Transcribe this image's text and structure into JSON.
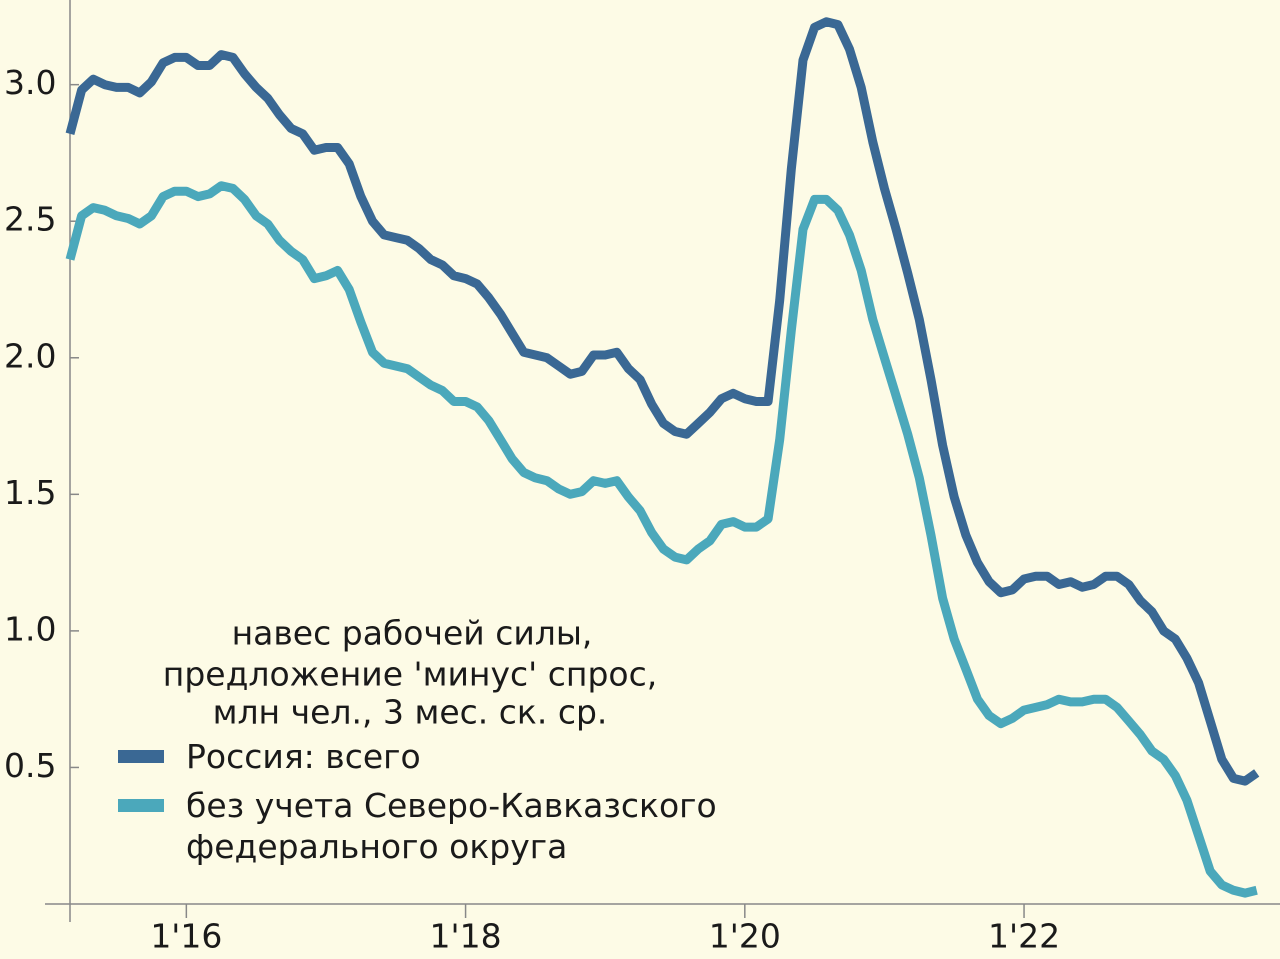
{
  "chart_data": {
    "type": "line",
    "title": [
      "навес рабочей силы,",
      "предложение 'минус' спрос,",
      "млн чел., 3 мес. ск. ср."
    ],
    "x": [
      "2015-03",
      "2015-04",
      "2015-05",
      "2015-06",
      "2015-07",
      "2015-08",
      "2015-09",
      "2015-10",
      "2015-11",
      "2015-12",
      "2016-01",
      "2016-02",
      "2016-03",
      "2016-04",
      "2016-05",
      "2016-06",
      "2016-07",
      "2016-08",
      "2016-09",
      "2016-10",
      "2016-11",
      "2016-12",
      "2017-01",
      "2017-02",
      "2017-03",
      "2017-04",
      "2017-05",
      "2017-06",
      "2017-07",
      "2017-08",
      "2017-09",
      "2017-10",
      "2017-11",
      "2017-12",
      "2018-01",
      "2018-02",
      "2018-03",
      "2018-04",
      "2018-05",
      "2018-06",
      "2018-07",
      "2018-08",
      "2018-09",
      "2018-10",
      "2018-11",
      "2018-12",
      "2019-01",
      "2019-02",
      "2019-03",
      "2019-04",
      "2019-05",
      "2019-06",
      "2019-07",
      "2019-08",
      "2019-09",
      "2019-10",
      "2019-11",
      "2019-12",
      "2020-01",
      "2020-02",
      "2020-03",
      "2020-04",
      "2020-05",
      "2020-06",
      "2020-07",
      "2020-08",
      "2020-09",
      "2020-10",
      "2020-11",
      "2020-12",
      "2021-01",
      "2021-02",
      "2021-03",
      "2021-04",
      "2021-05",
      "2021-06",
      "2021-07",
      "2021-08",
      "2021-09",
      "2021-10",
      "2021-11",
      "2021-12",
      "2022-01",
      "2022-02",
      "2022-03",
      "2022-04",
      "2022-05",
      "2022-06",
      "2022-07",
      "2022-08",
      "2022-09",
      "2022-10",
      "2022-11",
      "2022-12",
      "2023-01",
      "2023-02",
      "2023-03",
      "2023-04",
      "2023-05",
      "2023-06",
      "2023-07",
      "2023-08",
      "2023-09"
    ],
    "series": [
      {
        "name": "Россия: всего",
        "color": "#3a6894",
        "values": [
          2.82,
          2.98,
          3.02,
          3.0,
          2.99,
          2.99,
          2.97,
          3.01,
          3.08,
          3.1,
          3.1,
          3.07,
          3.07,
          3.11,
          3.1,
          3.04,
          2.99,
          2.95,
          2.89,
          2.84,
          2.82,
          2.76,
          2.77,
          2.77,
          2.71,
          2.59,
          2.5,
          2.45,
          2.44,
          2.43,
          2.4,
          2.36,
          2.34,
          2.3,
          2.29,
          2.27,
          2.22,
          2.16,
          2.09,
          2.02,
          2.01,
          2.0,
          1.97,
          1.94,
          1.95,
          2.01,
          2.01,
          2.02,
          1.96,
          1.92,
          1.83,
          1.76,
          1.73,
          1.72,
          1.76,
          1.8,
          1.85,
          1.87,
          1.85,
          1.84,
          1.84,
          2.21,
          2.69,
          3.09,
          3.21,
          3.23,
          3.22,
          3.13,
          2.99,
          2.79,
          2.62,
          2.47,
          2.31,
          2.14,
          1.92,
          1.68,
          1.49,
          1.35,
          1.25,
          1.18,
          1.14,
          1.15,
          1.19,
          1.2,
          1.2,
          1.17,
          1.18,
          1.16,
          1.17,
          1.2,
          1.2,
          1.17,
          1.11,
          1.07,
          1.0,
          0.97,
          0.9,
          0.81,
          0.67,
          0.53,
          0.46,
          0.45,
          0.48
        ]
      },
      {
        "name": "без учета Северо-Кавказского федерального округа",
        "color": "#4ba8bb",
        "values": [
          2.36,
          2.52,
          2.55,
          2.54,
          2.52,
          2.51,
          2.49,
          2.52,
          2.59,
          2.61,
          2.61,
          2.59,
          2.6,
          2.63,
          2.62,
          2.58,
          2.52,
          2.49,
          2.43,
          2.39,
          2.36,
          2.29,
          2.3,
          2.32,
          2.25,
          2.13,
          2.02,
          1.98,
          1.97,
          1.96,
          1.93,
          1.9,
          1.88,
          1.84,
          1.84,
          1.82,
          1.77,
          1.7,
          1.63,
          1.58,
          1.56,
          1.55,
          1.52,
          1.5,
          1.51,
          1.55,
          1.54,
          1.55,
          1.49,
          1.44,
          1.36,
          1.3,
          1.27,
          1.26,
          1.3,
          1.33,
          1.39,
          1.4,
          1.38,
          1.38,
          1.41,
          1.7,
          2.1,
          2.47,
          2.58,
          2.58,
          2.54,
          2.45,
          2.32,
          2.14,
          2.0,
          1.86,
          1.72,
          1.56,
          1.35,
          1.12,
          0.97,
          0.86,
          0.75,
          0.69,
          0.66,
          0.68,
          0.71,
          0.72,
          0.73,
          0.75,
          0.74,
          0.74,
          0.75,
          0.75,
          0.72,
          0.67,
          0.62,
          0.56,
          0.53,
          0.47,
          0.38,
          0.25,
          0.12,
          0.07,
          0.05,
          0.04,
          0.05
        ]
      }
    ],
    "xlim": [
      "2015-03",
      "2023-11"
    ],
    "xticks": [
      {
        "value": "2016-01",
        "label": "1'16"
      },
      {
        "value": "2018-01",
        "label": "1'18"
      },
      {
        "value": "2020-01",
        "label": "1'20"
      },
      {
        "value": "2022-01",
        "label": "1'22"
      }
    ],
    "ylim": [
      0,
      3.31
    ],
    "yticks": [
      0.5,
      {
        "value": 1,
        "label": "1.0"
      },
      1.5,
      {
        "value": 2,
        "label": "2.0"
      },
      2.5,
      {
        "value": 3,
        "label": "3.0"
      }
    ],
    "grid": false
  }
}
